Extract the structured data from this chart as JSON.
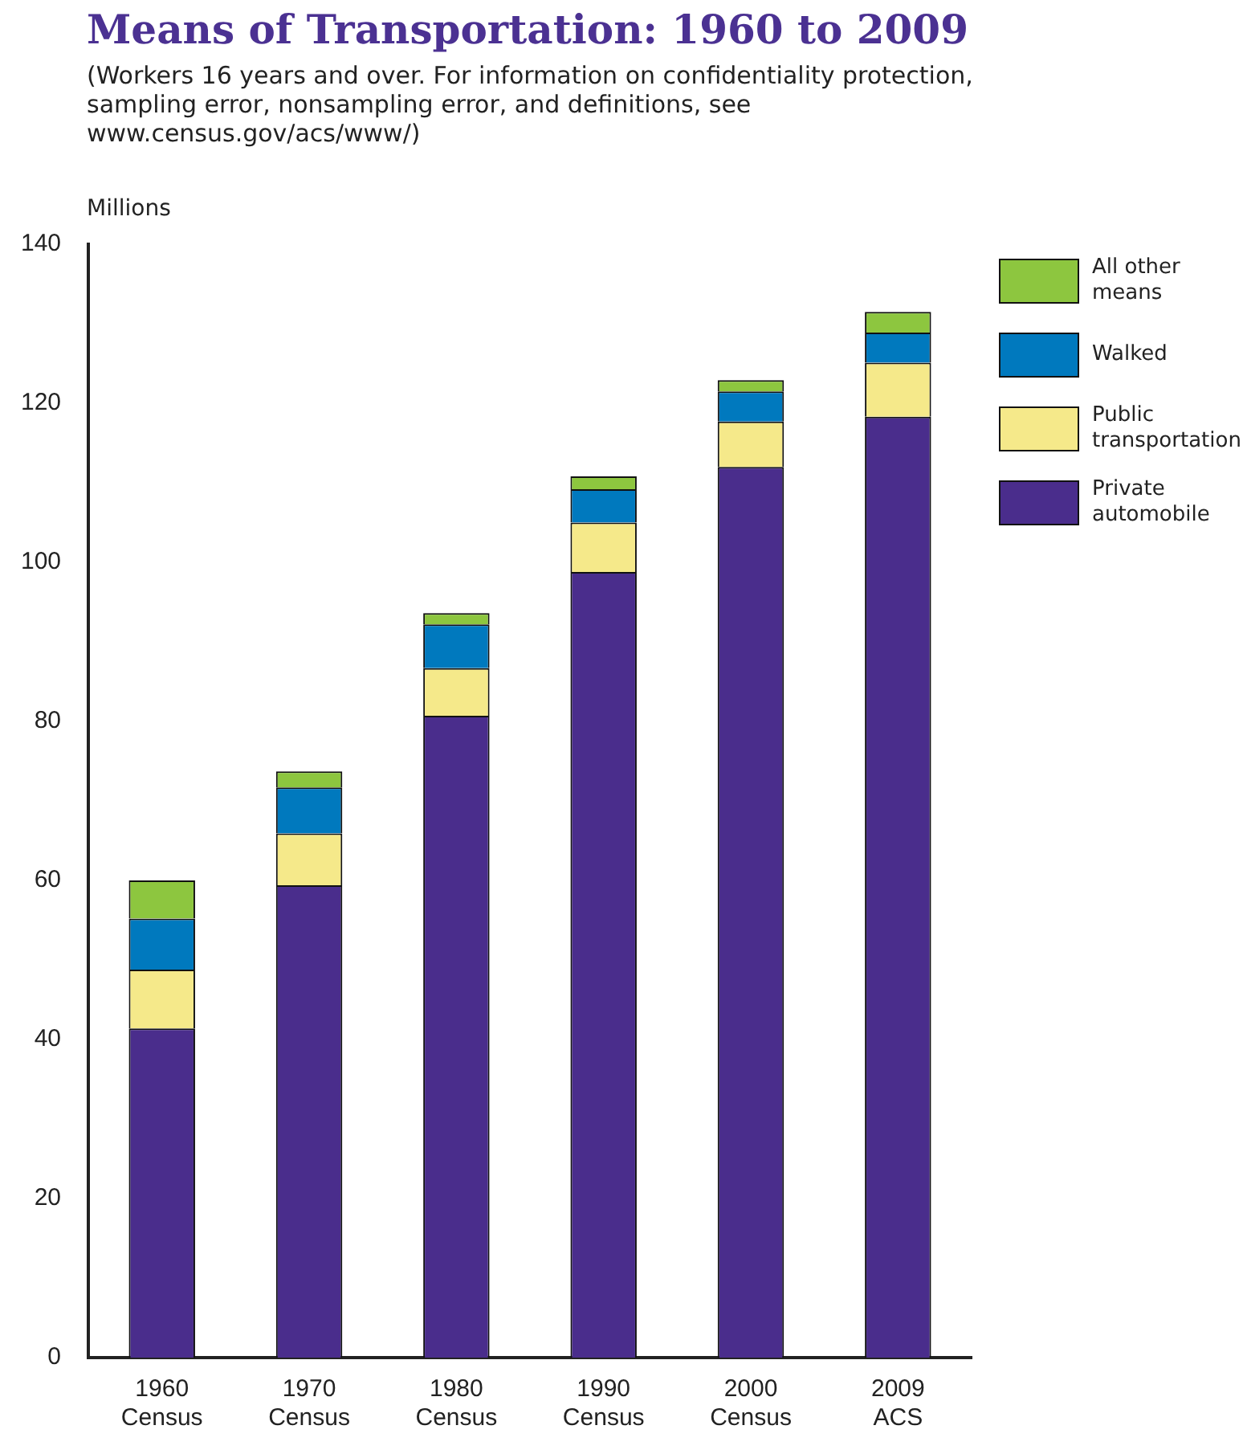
{
  "chart_data": {
    "type": "bar",
    "title": "Means of Transportation: 1960 to 2009",
    "subtitle": "(Workers 16 years and over. For information on confidentiality protection, sampling error, nonsampling error, and definitions, see www.census.gov/acs/www/)",
    "ylabel": "Millions",
    "categories": [
      "1960 Census",
      "1970 Census",
      "1980 Census",
      "1990 Census",
      "2000 Census",
      "2009 ACS"
    ],
    "stacked": true,
    "ylim": [
      0,
      140
    ],
    "yticks": [
      0,
      20,
      40,
      60,
      80,
      100,
      120,
      140
    ],
    "grid": false,
    "legend": "top right",
    "series": [
      {
        "name": "Private automobile",
        "color": "#4a2d8c",
        "values": [
          41.4,
          59.4,
          80.7,
          98.8,
          112.0,
          118.3
        ]
      },
      {
        "name": "Public transportation",
        "color": "#f5e98a",
        "values": [
          7.4,
          6.5,
          6.0,
          6.2,
          5.7,
          6.8
        ]
      },
      {
        "name": "Walked",
        "color": "#0079be",
        "values": [
          6.4,
          5.8,
          5.5,
          4.2,
          3.8,
          3.8
        ]
      },
      {
        "name": "All other means",
        "color": "#8dc63f",
        "values": [
          4.8,
          2.0,
          1.4,
          1.6,
          1.4,
          2.6
        ]
      }
    ]
  }
}
